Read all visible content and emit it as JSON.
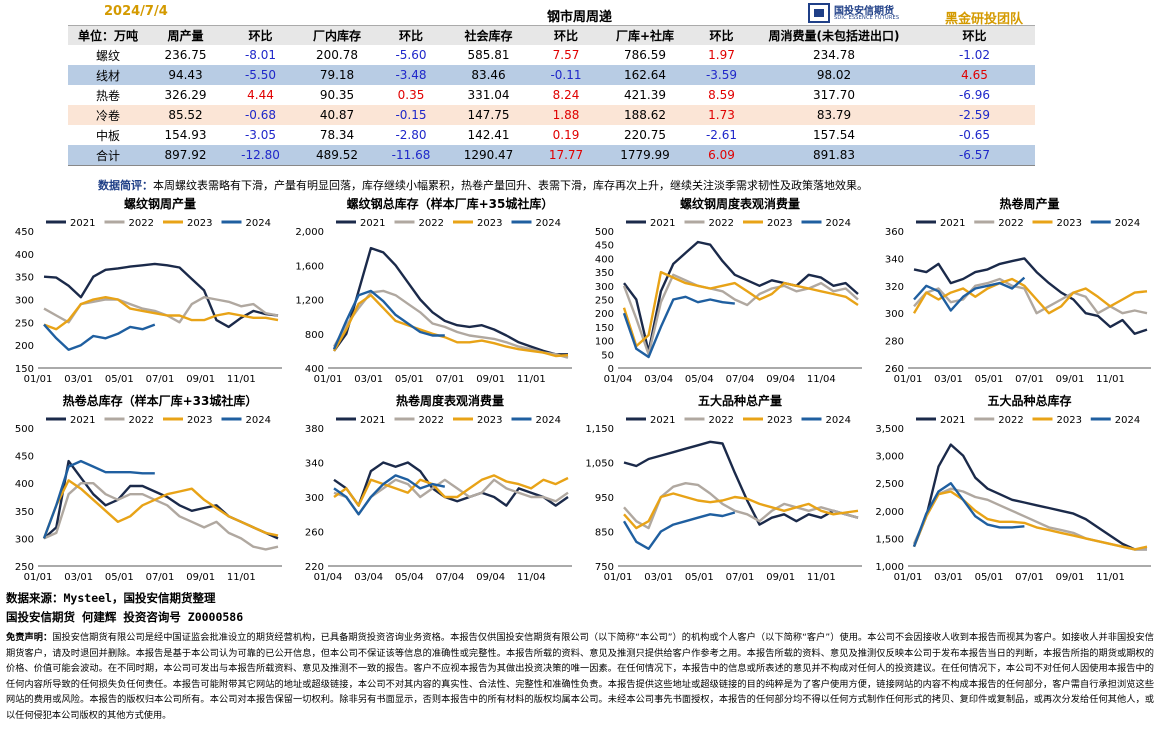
{
  "header": {
    "date": "2024/7/4",
    "title": "钢市周周递",
    "team": "黑金研投团队",
    "logo_cn": "国投安信期货",
    "logo_en": "SDIC ESSENCE FUTURES"
  },
  "table": {
    "headers": [
      "单位：万吨",
      "周产量",
      "环比",
      "厂内库存",
      "环比",
      "社会库存",
      "环比",
      "厂库+社库",
      "环比",
      "周消费量(未包括进出口)",
      "环比"
    ],
    "rows": [
      [
        "螺纹",
        "236.75",
        "-8.01",
        "200.78",
        "-5.60",
        "585.81",
        "7.57",
        "786.59",
        "1.97",
        "234.78",
        "-1.02"
      ],
      [
        "线材",
        "94.43",
        "-5.50",
        "79.18",
        "-3.48",
        "83.46",
        "-0.11",
        "162.64",
        "-3.59",
        "98.02",
        "4.65"
      ],
      [
        "热卷",
        "326.29",
        "4.44",
        "90.35",
        "0.35",
        "331.04",
        "8.24",
        "421.39",
        "8.59",
        "317.70",
        "-6.96"
      ],
      [
        "冷卷",
        "85.52",
        "-0.68",
        "40.87",
        "-0.15",
        "147.75",
        "1.88",
        "188.62",
        "1.73",
        "83.79",
        "-2.59"
      ],
      [
        "中板",
        "154.93",
        "-3.05",
        "78.34",
        "-2.80",
        "142.41",
        "0.19",
        "220.75",
        "-2.61",
        "157.54",
        "-0.65"
      ],
      [
        "合计",
        "897.92",
        "-12.80",
        "489.52",
        "-11.68",
        "1290.47",
        "17.77",
        "1779.99",
        "6.09",
        "891.83",
        "-6.57"
      ]
    ]
  },
  "note": {
    "label": "数据简评：",
    "text": "本周螺纹表需略有下滑，产量有明显回落，库存继续小幅累积，热卷产量回升、表需下滑，库存再次上升，继续关注淡季需求韧性及政策落地效果。"
  },
  "colors": {
    "2021": "#1b2a4a",
    "2022": "#b0a8a0",
    "2023": "#e8a317",
    "2024": "#1f5fa0",
    "up": "#e00000",
    "down": "#1f27c9"
  },
  "chart_data": [
    {
      "type": "line",
      "title": "螺纹钢周产量",
      "ylim": [
        150,
        450
      ],
      "yticks": [
        "150",
        "200",
        "250",
        "300",
        "350",
        "400",
        "450"
      ],
      "xticks": [
        "01/01",
        "03/01",
        "05/01",
        "07/01",
        "09/01",
        "11/01"
      ],
      "series": [
        {
          "name": "2021",
          "values": [
            350,
            348,
            330,
            305,
            350,
            365,
            368,
            372,
            375,
            378,
            375,
            370,
            345,
            320,
            255,
            240,
            260,
            275,
            268,
            265
          ]
        },
        {
          "name": "2022",
          "values": [
            280,
            265,
            250,
            290,
            295,
            300,
            300,
            290,
            280,
            275,
            265,
            250,
            290,
            305,
            300,
            295,
            285,
            290,
            270,
            265
          ]
        },
        {
          "name": "2023",
          "values": [
            245,
            235,
            255,
            290,
            300,
            305,
            300,
            280,
            275,
            270,
            265,
            265,
            255,
            255,
            265,
            270,
            265,
            260,
            260,
            255
          ]
        },
        {
          "name": "2024",
          "values": [
            245,
            215,
            190,
            200,
            220,
            215,
            225,
            240,
            235,
            245
          ]
        }
      ]
    },
    {
      "type": "line",
      "title": "螺纹钢总库存（样本厂库+35城社库）",
      "ylim": [
        400,
        2000
      ],
      "yticks": [
        "400",
        "800",
        "1,200",
        "1,600",
        "2,000"
      ],
      "xticks": [
        "01/01",
        "03/01",
        "05/01",
        "07/01",
        "09/01",
        "11/01"
      ],
      "series": [
        {
          "name": "2021",
          "values": [
            600,
            800,
            1300,
            1800,
            1750,
            1600,
            1400,
            1200,
            1050,
            950,
            900,
            880,
            900,
            850,
            780,
            700,
            650,
            600,
            560,
            560
          ]
        },
        {
          "name": "2022",
          "values": [
            650,
            900,
            1100,
            1280,
            1300,
            1250,
            1150,
            1050,
            920,
            880,
            820,
            780,
            760,
            740,
            700,
            650,
            620,
            580,
            560,
            520
          ]
        },
        {
          "name": "2023",
          "values": [
            600,
            850,
            1150,
            1250,
            1100,
            950,
            900,
            850,
            800,
            760,
            700,
            700,
            720,
            690,
            650,
            620,
            600,
            580,
            540,
            550
          ]
        },
        {
          "name": "2024",
          "values": [
            620,
            950,
            1250,
            1300,
            1180,
            1020,
            920,
            820,
            780,
            780
          ]
        }
      ]
    },
    {
      "type": "line",
      "title": "螺纹钢周度表观消费量",
      "ylim": [
        0,
        500
      ],
      "yticks": [
        "0",
        "50",
        "100",
        "150",
        "200",
        "250",
        "300",
        "350",
        "400",
        "450",
        "500"
      ],
      "xticks": [
        "01/04",
        "03/04",
        "05/04",
        "07/04",
        "09/04",
        "11/04"
      ],
      "series": [
        {
          "name": "2021",
          "values": [
            310,
            250,
            60,
            280,
            380,
            420,
            460,
            450,
            390,
            340,
            320,
            300,
            320,
            310,
            300,
            340,
            330,
            300,
            310,
            270
          ]
        },
        {
          "name": "2022",
          "values": [
            300,
            180,
            50,
            240,
            340,
            320,
            300,
            290,
            280,
            250,
            230,
            270,
            290,
            300,
            280,
            290,
            310,
            280,
            290,
            250
          ]
        },
        {
          "name": "2023",
          "values": [
            220,
            80,
            120,
            350,
            330,
            310,
            300,
            290,
            300,
            310,
            280,
            250,
            270,
            310,
            300,
            290,
            280,
            270,
            260,
            230
          ]
        },
        {
          "name": "2024",
          "values": [
            200,
            70,
            40,
            150,
            250,
            260,
            240,
            250,
            240,
            235
          ]
        }
      ]
    },
    {
      "type": "line",
      "title": "热卷周产量",
      "ylim": [
        260,
        360
      ],
      "yticks": [
        "260",
        "280",
        "300",
        "320",
        "340",
        "360"
      ],
      "xticks": [
        "01/01",
        "03/01",
        "05/01",
        "07/01",
        "09/01",
        "11/01"
      ],
      "series": [
        {
          "name": "2021",
          "values": [
            332,
            330,
            336,
            322,
            325,
            330,
            332,
            336,
            338,
            340,
            330,
            322,
            315,
            310,
            300,
            298,
            290,
            295,
            285,
            288
          ]
        },
        {
          "name": "2022",
          "values": [
            305,
            315,
            318,
            308,
            310,
            320,
            322,
            325,
            320,
            318,
            300,
            305,
            310,
            315,
            312,
            300,
            305,
            300,
            302,
            300
          ]
        },
        {
          "name": "2023",
          "values": [
            300,
            315,
            310,
            315,
            318,
            312,
            318,
            322,
            325,
            320,
            310,
            300,
            305,
            315,
            318,
            312,
            305,
            310,
            315,
            316
          ]
        },
        {
          "name": "2024",
          "values": [
            310,
            320,
            316,
            302,
            312,
            318,
            320,
            322,
            318,
            326
          ]
        }
      ]
    },
    {
      "type": "line",
      "title": "热卷总库存（样本厂库+33城社库）",
      "ylim": [
        250,
        500
      ],
      "yticks": [
        "250",
        "300",
        "350",
        "400",
        "450",
        "500"
      ],
      "xticks": [
        "01/01",
        "03/01",
        "05/01",
        "07/01",
        "09/01",
        "11/01"
      ],
      "series": [
        {
          "name": "2021",
          "values": [
            300,
            320,
            440,
            410,
            380,
            360,
            370,
            395,
            395,
            385,
            375,
            360,
            350,
            355,
            360,
            340,
            330,
            320,
            310,
            300
          ]
        },
        {
          "name": "2022",
          "values": [
            300,
            310,
            380,
            400,
            400,
            380,
            370,
            380,
            380,
            370,
            360,
            340,
            330,
            320,
            330,
            310,
            300,
            285,
            280,
            285
          ]
        },
        {
          "name": "2023",
          "values": [
            300,
            360,
            405,
            390,
            370,
            350,
            330,
            340,
            360,
            370,
            380,
            385,
            390,
            370,
            355,
            340,
            330,
            320,
            310,
            305
          ]
        },
        {
          "name": "2024",
          "values": [
            300,
            360,
            430,
            440,
            430,
            420,
            420,
            420,
            418,
            418
          ]
        }
      ]
    },
    {
      "type": "line",
      "title": "热卷周度表观消费量",
      "ylim": [
        220,
        380
      ],
      "yticks": [
        "220",
        "260",
        "300",
        "340",
        "380"
      ],
      "xticks": [
        "01/04",
        "03/04",
        "05/04",
        "07/04",
        "09/04",
        "11/04"
      ],
      "series": [
        {
          "name": "2021",
          "values": [
            320,
            310,
            290,
            330,
            340,
            335,
            340,
            330,
            310,
            300,
            295,
            300,
            305,
            300,
            290,
            310,
            305,
            300,
            290,
            300
          ]
        },
        {
          "name": "2022",
          "values": [
            305,
            300,
            280,
            300,
            310,
            320,
            315,
            300,
            310,
            320,
            310,
            300,
            305,
            320,
            310,
            305,
            300,
            300,
            295,
            305
          ]
        },
        {
          "name": "2023",
          "values": [
            300,
            310,
            290,
            320,
            315,
            310,
            305,
            320,
            315,
            300,
            300,
            310,
            320,
            325,
            318,
            315,
            310,
            320,
            315,
            322
          ]
        },
        {
          "name": "2024",
          "values": [
            310,
            300,
            280,
            300,
            315,
            325,
            320,
            310,
            315,
            312
          ]
        }
      ]
    },
    {
      "type": "line",
      "title": "五大品种总产量",
      "ylim": [
        750,
        1150
      ],
      "yticks": [
        "750",
        "850",
        "950",
        "1,050",
        "1,150"
      ],
      "xticks": [
        "01/01",
        "03/01",
        "05/01",
        "07/01",
        "09/01",
        "11/01"
      ],
      "series": [
        {
          "name": "2021",
          "values": [
            1050,
            1040,
            1060,
            1070,
            1080,
            1090,
            1100,
            1110,
            1105,
            1020,
            940,
            870,
            890,
            900,
            880,
            900,
            890,
            910,
            900,
            890
          ]
        },
        {
          "name": "2022",
          "values": [
            920,
            880,
            860,
            950,
            980,
            990,
            985,
            960,
            930,
            910,
            900,
            880,
            910,
            930,
            920,
            910,
            920,
            910,
            900,
            890
          ]
        },
        {
          "name": "2023",
          "values": [
            900,
            860,
            880,
            950,
            960,
            950,
            940,
            935,
            940,
            950,
            945,
            930,
            920,
            910,
            920,
            930,
            910,
            900,
            905,
            910
          ]
        },
        {
          "name": "2024",
          "values": [
            880,
            820,
            800,
            850,
            870,
            880,
            890,
            900,
            895,
            905
          ]
        }
      ]
    },
    {
      "type": "line",
      "title": "五大品种总库存",
      "ylim": [
        1000,
        3500
      ],
      "yticks": [
        "1,000",
        "1,500",
        "2,000",
        "2,500",
        "3,000",
        "3,500"
      ],
      "xticks": [
        "01/01",
        "03/01",
        "05/01",
        "07/01",
        "09/01",
        "11/01"
      ],
      "series": [
        {
          "name": "2021",
          "values": [
            1350,
            1900,
            2800,
            3200,
            3000,
            2600,
            2400,
            2300,
            2200,
            2150,
            2100,
            2050,
            2000,
            1950,
            1850,
            1700,
            1550,
            1400,
            1300,
            1300
          ]
        },
        {
          "name": "2022",
          "values": [
            1400,
            1900,
            2300,
            2400,
            2350,
            2250,
            2200,
            2100,
            2000,
            1900,
            1800,
            1700,
            1650,
            1600,
            1500,
            1450,
            1400,
            1350,
            1300,
            1300
          ]
        },
        {
          "name": "2023",
          "values": [
            1350,
            1900,
            2300,
            2350,
            2200,
            2000,
            1850,
            1800,
            1800,
            1780,
            1700,
            1650,
            1600,
            1550,
            1500,
            1450,
            1400,
            1350,
            1300,
            1350
          ]
        },
        {
          "name": "2024",
          "values": [
            1350,
            1950,
            2350,
            2500,
            2200,
            1900,
            1750,
            1700,
            1700,
            1720
          ]
        }
      ]
    }
  ],
  "footer": {
    "source": "数据来源：Mysteel，国投安信期货整理",
    "authors": "国投安信期货  何建辉  投资咨询号  Z0000586",
    "disclaimer_label": "免责声明：",
    "disclaimer": "国投安信期货有限公司是经中国证监会批准设立的期货经营机构，已具备期货投资咨询业务资格。本报告仅供国投安信期货有限公司（以下简称“本公司”）的机构或个人客户（以下简称“客户”）使用。本公司不会因接收人收到本报告而视其为客户。如接收人并非国投安信期货客户，请及时退回并删除。本报告是基于本公司认为可靠的已公开信息，但本公司不保证该等信息的准确性或完整性。本报告所载的资料、意见及推测只提供给客户作参考之用。本报告所载的资料、意见及推测仅反映本公司于发布本报告当日的判断，本报告所指的期货或期权的价格、价值可能会波动。在不同时期，本公司可发出与本报告所载资料、意见及推测不一致的报告。客户不应视本报告为其做出投资决策的唯一因素。在任何情况下，本报告中的信息或所表述的意见并不构成对任何人的投资建议。在任何情况下，本公司不对任何人因使用本报告中的任何内容所导致的任何损失负任何责任。本报告可能附带其它网站的地址或超级链接，本公司不对其内容的真实性、合法性、完整性和准确性负责。本报告提供这些地址或超级链接的目的纯粹是为了客户使用方便，链接网站的内容不构成本报告的任何部分，客户需自行承担浏览这些网站的费用或风险。本报告的版权归本公司所有。本公司对本报告保留一切权利。除非另有书面显示，否则本报告中的所有材料的版权均属本公司。未经本公司事先书面授权，本报告的任何部分均不得以任何方式制作任何形式的拷贝、复印件或复制品，或再次分发给任何其他人，或以任何侵犯本公司版权的其他方式使用。"
  }
}
